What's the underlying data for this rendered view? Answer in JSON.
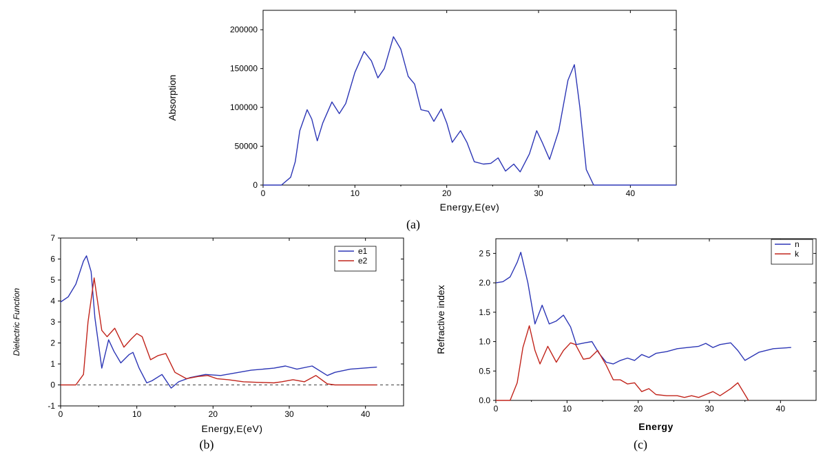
{
  "chart_data": [
    {
      "id": "a",
      "type": "line",
      "caption": "(a)",
      "xlabel": "Energy,E(ev)",
      "ylabel": "Absorption",
      "xlim": [
        0,
        45
      ],
      "ylim": [
        0,
        225000
      ],
      "xticks": [
        0,
        10,
        20,
        30,
        40
      ],
      "yticks": [
        0,
        50000,
        100000,
        150000,
        200000
      ],
      "series": [
        {
          "color": "#2b35b5",
          "x": [
            0,
            2,
            3,
            3.5,
            4,
            4.8,
            5.3,
            5.9,
            6.5,
            7.5,
            8.3,
            9,
            10,
            11,
            11.8,
            12.5,
            13.2,
            14.2,
            15,
            15.8,
            16.5,
            17.2,
            18,
            18.6,
            19.4,
            20,
            20.6,
            21.5,
            22.2,
            23,
            24,
            24.8,
            25.6,
            26.4,
            27.3,
            28,
            29,
            29.8,
            30.4,
            31.2,
            32.2,
            33.2,
            33.9,
            34.5,
            35.2,
            36,
            40,
            45
          ],
          "y": [
            0,
            0,
            10000,
            30000,
            70000,
            97000,
            85000,
            57000,
            80000,
            107000,
            92000,
            105000,
            145000,
            172000,
            160000,
            138000,
            150000,
            191000,
            175000,
            140000,
            130000,
            97000,
            95000,
            82000,
            98000,
            80000,
            55000,
            70000,
            55000,
            30000,
            27000,
            28000,
            35000,
            18000,
            27000,
            17000,
            40000,
            70000,
            55000,
            33000,
            70000,
            135000,
            155000,
            100000,
            20000,
            0,
            0,
            0
          ]
        }
      ]
    },
    {
      "id": "b",
      "type": "line",
      "caption": "(b)",
      "xlabel": "Energy,E(eV)",
      "ylabel": "Dielectric Function",
      "xlim": [
        0,
        45
      ],
      "ylim": [
        -1,
        7
      ],
      "xticks": [
        0,
        10,
        20,
        30,
        40
      ],
      "yticks": [
        -1,
        0,
        1,
        2,
        3,
        4,
        5,
        6,
        7
      ],
      "legend": "top-right",
      "series": [
        {
          "name": "e1",
          "color": "#2b35b5",
          "x": [
            0,
            1,
            2,
            3,
            3.4,
            4,
            4.5,
            5.4,
            6.3,
            7,
            7.9,
            9,
            9.5,
            10.3,
            11.3,
            12,
            13.3,
            14.5,
            15.5,
            17,
            19,
            21,
            25,
            28,
            29.5,
            31,
            33,
            35,
            36,
            38,
            41.5
          ],
          "y": [
            3.95,
            4.2,
            4.8,
            5.9,
            6.15,
            5.4,
            3.2,
            0.8,
            2.15,
            1.6,
            1.05,
            1.45,
            1.55,
            0.8,
            0.1,
            0.2,
            0.5,
            -0.15,
            0.15,
            0.35,
            0.5,
            0.45,
            0.7,
            0.8,
            0.9,
            0.75,
            0.9,
            0.45,
            0.6,
            0.75,
            0.85
          ]
        },
        {
          "name": "e2",
          "color": "#c1231a",
          "x": [
            0,
            2,
            3,
            3.6,
            4.4,
            5.4,
            6.1,
            7.1,
            8.3,
            9.3,
            10,
            10.7,
            11.8,
            12.8,
            13.8,
            15,
            16.5,
            18,
            19.3,
            20.5,
            22,
            24,
            26,
            28,
            29,
            30.5,
            32,
            33.5,
            35,
            36,
            41.5
          ],
          "y": [
            0,
            0,
            0.5,
            3,
            5.1,
            2.6,
            2.3,
            2.7,
            1.8,
            2.2,
            2.45,
            2.3,
            1.2,
            1.4,
            1.5,
            0.6,
            0.3,
            0.4,
            0.45,
            0.3,
            0.25,
            0.15,
            0.12,
            0.1,
            0.15,
            0.25,
            0.15,
            0.45,
            0.05,
            0,
            0
          ]
        }
      ]
    },
    {
      "id": "c",
      "type": "line",
      "caption": "(c)",
      "xlabel": "Energy",
      "ylabel": "Refractive index",
      "xlim": [
        0,
        45
      ],
      "ylim": [
        0,
        2.75
      ],
      "xticks": [
        0,
        10,
        20,
        30,
        40
      ],
      "yticks": [
        0.0,
        0.5,
        1.0,
        1.5,
        2.0,
        2.5
      ],
      "ytick_labels": [
        "0.0",
        "0.5",
        "1.0",
        "1.5",
        "2.0",
        "2 5"
      ],
      "legend": "top-right",
      "series": [
        {
          "name": "n",
          "color": "#2b35b5",
          "x": [
            0,
            1,
            2,
            3,
            3.5,
            4.5,
            5.5,
            6.5,
            7.5,
            8.5,
            9.5,
            10.5,
            11.3,
            12.5,
            13.5,
            14.5,
            15.5,
            16.5,
            17.5,
            18.5,
            19.5,
            20.5,
            21.5,
            22.5,
            24,
            25.5,
            27,
            28.5,
            29.5,
            30.5,
            31.5,
            33,
            34,
            35,
            37,
            39,
            41.5
          ],
          "y": [
            2.0,
            2.02,
            2.1,
            2.35,
            2.52,
            2.0,
            1.3,
            1.62,
            1.3,
            1.35,
            1.45,
            1.25,
            0.95,
            0.98,
            1.0,
            0.8,
            0.65,
            0.62,
            0.68,
            0.72,
            0.68,
            0.78,
            0.73,
            0.8,
            0.83,
            0.88,
            0.9,
            0.92,
            0.97,
            0.9,
            0.95,
            0.98,
            0.85,
            0.68,
            0.82,
            0.88,
            0.9
          ]
        },
        {
          "name": "k",
          "color": "#c1231a",
          "x": [
            0,
            2,
            3,
            3.8,
            4.7,
            5.5,
            6.2,
            7.3,
            8.5,
            9.5,
            10.5,
            11.2,
            12.3,
            13.2,
            14.3,
            15.5,
            16.5,
            17.5,
            18.5,
            19.5,
            20.5,
            21.5,
            22.5,
            24,
            25.5,
            26.5,
            27.5,
            28.5,
            29.5,
            30.5,
            31.5,
            33,
            34,
            35,
            35.5
          ],
          "y": [
            0,
            0,
            0.3,
            0.9,
            1.27,
            0.85,
            0.62,
            0.92,
            0.65,
            0.85,
            0.98,
            0.95,
            0.7,
            0.72,
            0.85,
            0.6,
            0.35,
            0.35,
            0.28,
            0.3,
            0.15,
            0.2,
            0.1,
            0.08,
            0.08,
            0.05,
            0.08,
            0.05,
            0.1,
            0.15,
            0.08,
            0.2,
            0.3,
            0.1,
            0
          ]
        }
      ]
    }
  ]
}
